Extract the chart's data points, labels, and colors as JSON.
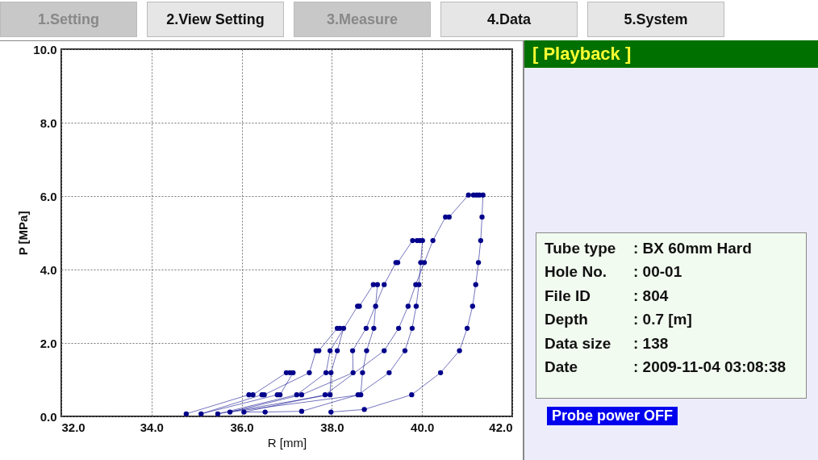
{
  "chart_data": [
    {
      "type": "other",
      "annotations": [
        "1.Setting",
        "2.View Setting",
        "3.Measure",
        "4.Data",
        "5.System"
      ]
    },
    {
      "type": "line",
      "xlabel": "R [mm]",
      "ylabel": "P [MPa]",
      "grid": true,
      "marker": "circle",
      "line_style": "solid",
      "xlim": [
        32,
        42
      ],
      "ylim": [
        0,
        10
      ],
      "xticks": [
        {
          "value": 32,
          "label": "32.0"
        },
        {
          "value": 34,
          "label": "34.0"
        },
        {
          "value": 36,
          "label": "36.0"
        },
        {
          "value": 38,
          "label": "38.0"
        },
        {
          "value": 40,
          "label": "40.0"
        },
        {
          "value": 42,
          "label": "42.0"
        }
      ],
      "yticks": [
        {
          "value": 0,
          "label": "0.0"
        },
        {
          "value": 2,
          "label": "2.0"
        },
        {
          "value": 4,
          "label": "4.0"
        },
        {
          "value": 6,
          "label": "6.0"
        },
        {
          "value": 8,
          "label": "8.0"
        },
        {
          "value": 10,
          "label": "10.0"
        }
      ],
      "series": [
        {
          "color": "#00008b",
          "x": [
            34.77,
            36.16,
            36.25,
            36.99,
            37.07,
            37.14,
            36.85,
            36.79,
            35.1,
            36.45,
            36.5,
            37.5,
            37.65,
            37.71,
            38.12,
            38.18,
            38.26,
            38.12,
            37.98,
            37.96,
            35.47,
            37.22,
            37.87,
            37.96,
            38.57,
            38.61,
            38.92,
            39.01,
            38.97,
            38.93,
            38.77,
            38.68,
            38.64,
            35.74,
            37.33,
            38.47,
            38.46,
            38.76,
            39.16,
            39.42,
            39.46,
            39.79,
            39.89,
            39.95,
            40.01,
            39.97,
            39.93,
            39.87,
            39.78,
            39.62,
            39.27,
            38.58,
            37.33,
            36.52,
            36.05,
            37.85,
            39.16,
            39.48,
            39.69,
            39.86,
            40.05,
            40.24,
            40.52,
            40.6,
            41.03,
            41.14,
            41.21,
            41.27,
            41.35,
            41.33,
            41.3,
            41.25,
            41.19,
            41.12,
            41.0,
            40.83,
            40.41,
            39.77,
            38.72,
            37.98
          ],
          "values": [
            0.07,
            0.59,
            0.59,
            1.19,
            1.19,
            1.19,
            0.59,
            0.59,
            0.07,
            0.59,
            0.59,
            1.19,
            1.79,
            1.79,
            2.4,
            2.4,
            2.4,
            1.79,
            1.19,
            0.59,
            0.07,
            0.59,
            1.19,
            1.79,
            3.0,
            3.0,
            3.59,
            3.59,
            3.0,
            2.4,
            1.79,
            1.19,
            0.59,
            0.12,
            0.59,
            1.19,
            1.79,
            2.4,
            3.59,
            4.19,
            4.19,
            4.79,
            4.79,
            4.79,
            4.79,
            4.19,
            3.59,
            3.0,
            2.4,
            1.79,
            1.19,
            0.59,
            0.14,
            0.12,
            0.12,
            0.59,
            1.79,
            2.4,
            3.0,
            3.59,
            4.19,
            4.79,
            5.43,
            5.43,
            6.03,
            6.03,
            6.03,
            6.03,
            6.03,
            5.43,
            4.79,
            4.19,
            3.59,
            3.0,
            2.4,
            1.79,
            1.19,
            0.59,
            0.19,
            0.12
          ]
        }
      ]
    },
    {
      "type": "other",
      "title": "[ Playback ]",
      "annotations": [
        "Tube type : BX 60mm Hard",
        "Hole No. : 00-01",
        "File ID : 804",
        "Depth : 0.7 [m]",
        "Data size : 138",
        "Date : 2009-11-04 03:08:38",
        "Probe power OFF"
      ]
    }
  ]
}
